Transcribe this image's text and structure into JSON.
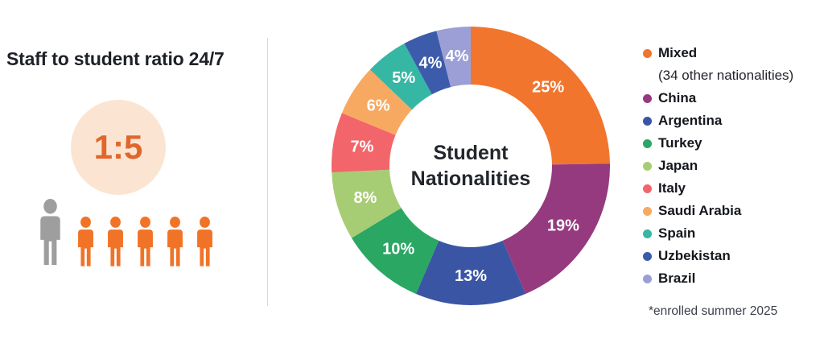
{
  "left_panel": {
    "title": "Staff to student ratio 24/7",
    "ratio_value": "1:5",
    "staff_count": 1,
    "student_count": 5,
    "colors": {
      "circle_bg": "#fbe5d2",
      "ratio_text": "#df672c",
      "staff_icon": "#9e9e9e",
      "student_icon": "#f17327"
    }
  },
  "chart_data": {
    "type": "pie",
    "variant": "donut",
    "title": "Student Nationalities",
    "center_label_lines": [
      "Student",
      "Nationalities"
    ],
    "value_suffix": "%",
    "start_angle_deg": 0,
    "direction": "clockwise",
    "legend_position": "right",
    "series": [
      {
        "label": "Mixed",
        "sublabel": "(34 other nationalities)",
        "value": 25,
        "color": "#f1752d"
      },
      {
        "label": "China",
        "value": 19,
        "color": "#953a7e"
      },
      {
        "label": "Argentina",
        "value": 13,
        "color": "#3b55a5"
      },
      {
        "label": "Turkey",
        "value": 10,
        "color": "#29a763"
      },
      {
        "label": "Japan",
        "value": 8,
        "color": "#a7cd74"
      },
      {
        "label": "Italy",
        "value": 7,
        "color": "#f2666b"
      },
      {
        "label": "Saudi Arabia",
        "value": 6,
        "color": "#f8a961"
      },
      {
        "label": "Spain",
        "value": 5,
        "color": "#35b7a4"
      },
      {
        "label": "Uzbekistan",
        "value": 4,
        "color": "#3c5cab"
      },
      {
        "label": "Brazil",
        "value": 4,
        "color": "#9c9fd5"
      }
    ]
  },
  "footnote": "*enrolled summer 2025"
}
